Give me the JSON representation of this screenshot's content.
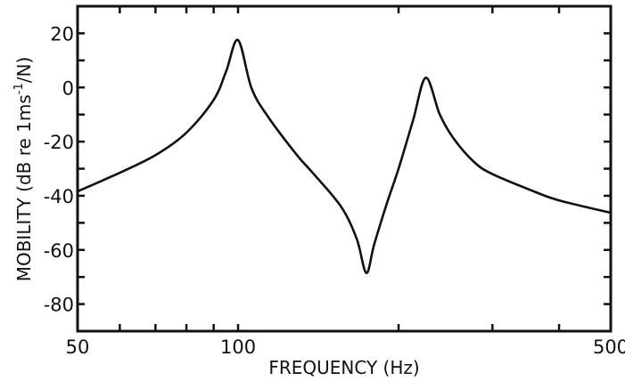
{
  "chart_data": {
    "type": "line",
    "title": "",
    "xlabel": "FREQUENCY (Hz)",
    "ylabel": {
      "main": "MOBILITY (dB re 1ms",
      "superscript": "-1",
      "tail": "/N)"
    },
    "xscale": "log",
    "xlim": [
      50,
      500
    ],
    "ylim": [
      -90,
      30
    ],
    "x_tick_labels": [
      {
        "value": 50,
        "label": "50"
      },
      {
        "value": 100,
        "label": "100"
      },
      {
        "value": 500,
        "label": "500"
      }
    ],
    "x_minor_ticks": [
      60,
      70,
      80,
      90,
      200,
      300,
      400
    ],
    "y_tick_labels": [
      {
        "value": 20,
        "label": "20"
      },
      {
        "value": 0,
        "label": "0"
      },
      {
        "value": -20,
        "label": "-20"
      },
      {
        "value": -40,
        "label": "-40"
      },
      {
        "value": -60,
        "label": "-60"
      },
      {
        "value": -80,
        "label": "-80"
      }
    ],
    "y_minor_ticks": [
      10,
      -10,
      -30,
      -50,
      -70
    ],
    "grid": false,
    "color": "#111111",
    "series": [
      {
        "x": [
          50,
          60,
          70,
          80,
          90,
          95,
          100,
          106,
          114,
          129,
          138,
          156,
          167,
          174,
          180,
          190,
          200,
          213,
          225,
          239,
          254,
          277,
          300,
          360,
          400,
          500
        ],
        "y": [
          -38.4,
          -31.5,
          -25,
          -16.7,
          -4.6,
          6,
          17.5,
          -0.3,
          -11,
          -25,
          -31.5,
          -44,
          -56,
          -68.5,
          -58,
          -43,
          -30,
          -12,
          3.6,
          -10,
          -19,
          -27.5,
          -32,
          -38.5,
          -41.7,
          -46.3
        ]
      }
    ]
  }
}
